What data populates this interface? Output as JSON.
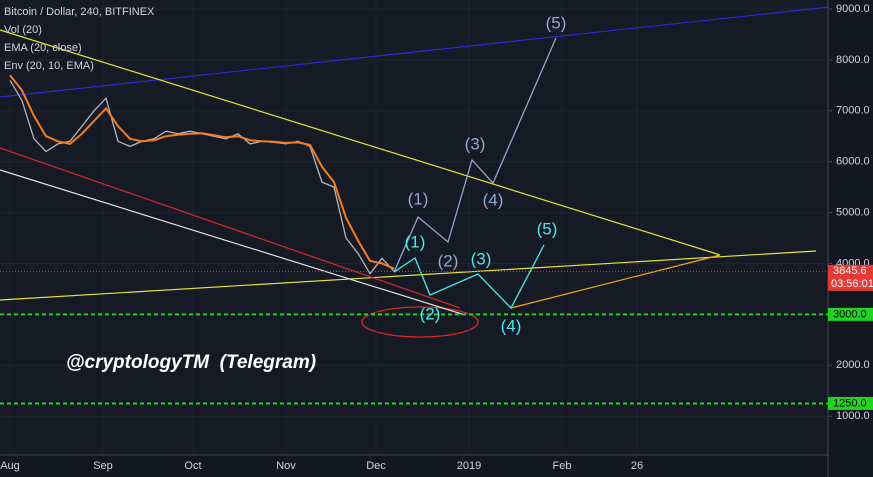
{
  "chart_data": {
    "type": "line",
    "title": "Bitcoin / Dollar, 240, BITFINEX",
    "indicators": [
      "Vol (20)",
      "EMA (20, close)",
      "Env (20, 10, EMA)"
    ],
    "watermark": "@cryptologyTM  (Telegram)",
    "x": [
      0,
      4,
      8,
      12,
      16,
      20,
      24,
      28,
      32,
      36,
      40,
      44,
      48,
      52,
      56,
      60,
      64,
      68,
      72,
      76,
      80,
      84,
      88,
      92,
      96,
      100,
      104,
      108,
      112,
      116,
      120,
      124,
      128
    ],
    "series": [
      {
        "color": "#b2b5be",
        "values": [
          7600,
          7200,
          6450,
          6200,
          6350,
          6400,
          6700,
          7000,
          7250,
          6400,
          6300,
          6400,
          6450,
          6600,
          6550,
          6600,
          6550,
          6500,
          6450,
          6550,
          6350,
          6400,
          6380,
          6350,
          6400,
          6300,
          5600,
          5500,
          4500,
          4200,
          3800,
          4100,
          3846
        ]
      },
      {
        "color": "#f57c1f",
        "values": [
          7700,
          7400,
          6900,
          6500,
          6400,
          6350,
          6550,
          6800,
          7050,
          6700,
          6450,
          6400,
          6420,
          6500,
          6530,
          6550,
          6560,
          6520,
          6480,
          6500,
          6420,
          6400,
          6390,
          6370,
          6380,
          6330,
          5900,
          5600,
          4900,
          4450,
          4050,
          4000,
          3900
        ]
      }
    ],
    "trendlines": [
      {
        "color": "#2b2bd6",
        "x": [
          -3.3,
          272.7
        ],
        "values": [
          7271,
          9038
        ]
      },
      {
        "color": "#e8e13a",
        "x": [
          -3.3,
          236.7
        ],
        "values": [
          8587,
          4167
        ]
      },
      {
        "color": "#e8e13a",
        "x": [
          -3.3,
          268.7
        ],
        "values": [
          3283,
          4246
        ]
      },
      {
        "color": "#e0e0e0",
        "x": [
          -3.3,
          151.7
        ],
        "values": [
          5837,
          2988
        ]
      },
      {
        "color": "#d42a2a",
        "x": [
          -3.3,
          150
        ],
        "values": [
          6269,
          3126
        ]
      },
      {
        "color": "#f5a623",
        "x": [
          167,
          236.7
        ],
        "values": [
          3126,
          4167
        ]
      }
    ],
    "waves": [
      {
        "color": "#8fa8cc",
        "x": [
          128,
          136,
          146,
          154,
          161,
          182
        ],
        "values": [
          3830,
          4913,
          4422,
          6033,
          5580,
          8430
        ],
        "labels": [
          {
            "text": "(1)",
            "x": 136,
            "y": 5248
          },
          {
            "text": "(2)",
            "x": 146,
            "y": 4030
          },
          {
            "text": "(3)",
            "x": 155,
            "y": 6328
          },
          {
            "text": "(4)",
            "x": 161,
            "y": 5228
          },
          {
            "text": "(5)",
            "x": 182,
            "y": 8705
          }
        ]
      },
      {
        "color": "#4de8e8",
        "x": [
          128,
          135,
          140,
          156,
          167,
          178
        ],
        "values": [
          3830,
          4108,
          3381,
          3794,
          3126,
          4363
        ],
        "labels": [
          {
            "text": "(1)",
            "x": 135,
            "y": 4403
          },
          {
            "text": "(2)",
            "x": 140,
            "y": 2988
          },
          {
            "text": "(3)",
            "x": 157,
            "y": 4069
          },
          {
            "text": "(4)",
            "x": 167,
            "y": 2752
          },
          {
            "text": "(5)",
            "x": 179,
            "y": 4658
          }
        ]
      }
    ],
    "levels": [
      {
        "value": 3845.6,
        "label": "3845.6",
        "countdown": "03:56:01",
        "color": "#e53935"
      },
      {
        "value": 3000,
        "label": "3000.0",
        "color": "#22d422"
      },
      {
        "value": 1250,
        "label": "1250.0",
        "color": "#22d422"
      }
    ],
    "xlim": [
      -3.333,
      272.667
    ],
    "ylim": [
      237,
      9177
    ],
    "xticks": [
      {
        "value": 0,
        "label": "Aug"
      },
      {
        "value": 31,
        "label": "Sep"
      },
      {
        "value": 61,
        "label": "Oct"
      },
      {
        "value": 92,
        "label": "Nov"
      },
      {
        "value": 122,
        "label": "Dec"
      },
      {
        "value": 153,
        "label": "2019"
      },
      {
        "value": 184,
        "label": "Feb"
      },
      {
        "value": 209,
        "label": "26"
      }
    ],
    "yticks": [
      {
        "value": 1000,
        "label": "1000.0"
      },
      {
        "value": 2000,
        "label": "2000.0"
      },
      {
        "value": 3000,
        "label": "3000.0"
      },
      {
        "value": 4000,
        "label": "4000.0"
      },
      {
        "value": 5000,
        "label": "5000.0"
      },
      {
        "value": 6000,
        "label": "6000.0"
      },
      {
        "value": 7000,
        "label": "7000.0"
      },
      {
        "value": 8000,
        "label": "8000.0"
      },
      {
        "value": 9000,
        "label": "9000.0"
      }
    ],
    "grid": true
  }
}
